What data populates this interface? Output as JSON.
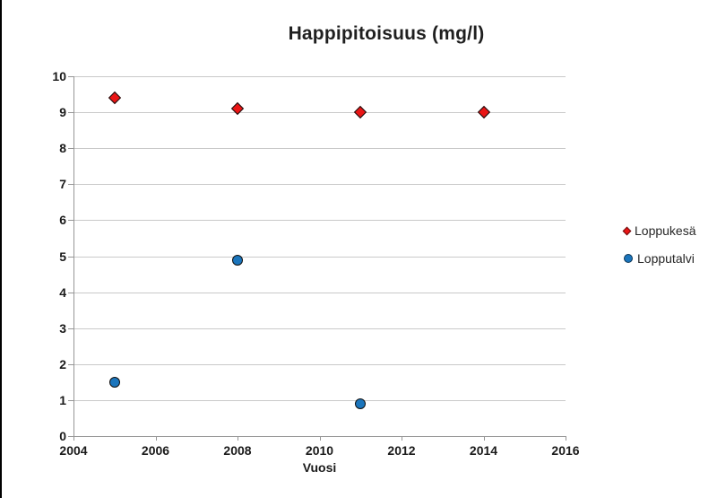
{
  "frame": {
    "background": "#FFFFFF",
    "left_border_color": "#000000"
  },
  "chart_data": {
    "type": "scatter",
    "title": "Happipitoisuus (mg/l)",
    "xlabel": "Vuosi",
    "ylabel": "",
    "xlim": [
      2004,
      2016
    ],
    "ylim": [
      0,
      10
    ],
    "x_ticks": [
      2004,
      2006,
      2008,
      2010,
      2012,
      2014,
      2016
    ],
    "y_ticks": [
      0,
      1,
      2,
      3,
      4,
      5,
      6,
      7,
      8,
      9,
      10
    ],
    "grid": "horizontal",
    "legend_position": "right-middle",
    "colors": {
      "gridline": "#C9C9C9",
      "axis": "#969696",
      "title_text": "#1F1F1F",
      "tick_text": "#1A1A1A"
    },
    "series": [
      {
        "name": "Loppukesä",
        "marker": "diamond",
        "fill": "#EA1515",
        "outline": "#101010",
        "points": [
          {
            "x": 2005,
            "y": 9.4
          },
          {
            "x": 2008,
            "y": 9.1
          },
          {
            "x": 2011,
            "y": 9.0
          },
          {
            "x": 2014,
            "y": 9.0
          }
        ]
      },
      {
        "name": "Lopputalvi",
        "marker": "circle",
        "fill": "#1B75BC",
        "outline": "#101010",
        "points": [
          {
            "x": 2005,
            "y": 1.5
          },
          {
            "x": 2008,
            "y": 4.9
          },
          {
            "x": 2011,
            "y": 0.9
          }
        ]
      }
    ]
  }
}
